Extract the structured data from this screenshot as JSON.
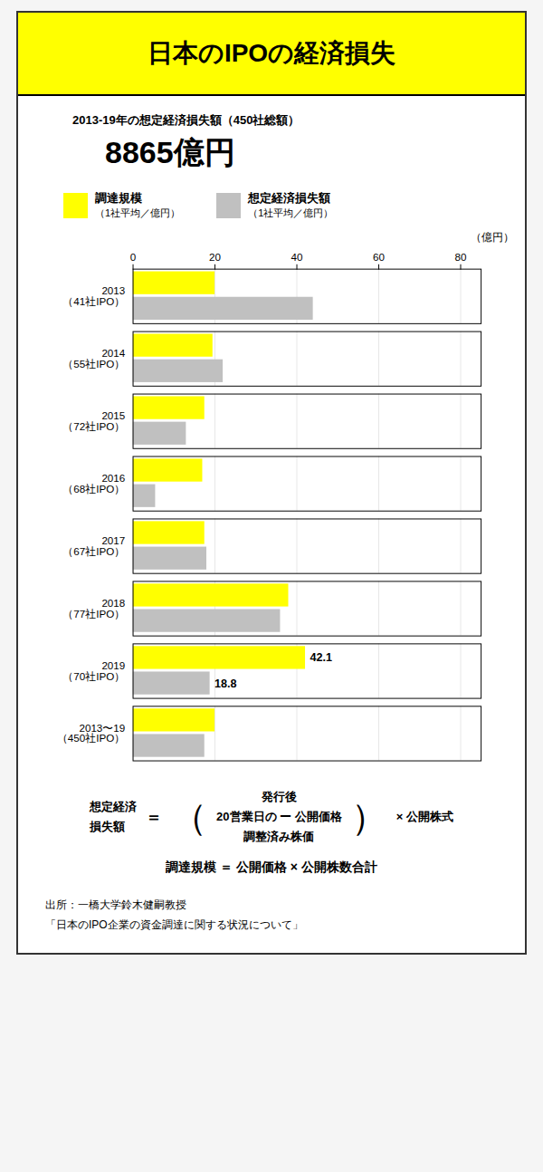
{
  "chart_data": {
    "type": "bar",
    "orientation": "horizontal",
    "title": "日本のIPOの経済損失",
    "subtitle": "2013-19年の想定経済損失額（450社総額）",
    "headline": "8865億円",
    "categories": [
      "2013\n（41社IPO）",
      "2014\n（55社IPO）",
      "2015\n（72社IPO）",
      "2016\n（68社IPO）",
      "2017\n（67社IPO）",
      "2018\n（77社IPO）",
      "2019\n（70社IPO）",
      "2013〜19\n（450社IPO）"
    ],
    "series": [
      {
        "name": "調達規模",
        "legend_note": "（1社平均／億円）",
        "color": "#ffff00",
        "values": [
          20.0,
          19.5,
          17.5,
          17.0,
          17.5,
          38.0,
          42.1,
          20.0
        ],
        "value_labels": [
          null,
          null,
          null,
          null,
          null,
          null,
          "42.1",
          null
        ]
      },
      {
        "name": "想定経済損失額",
        "legend_note": "（1社平均／億円）",
        "color": "#c0c0c0",
        "values": [
          44.0,
          22.0,
          13.0,
          5.5,
          18.0,
          36.0,
          18.8,
          17.5
        ],
        "value_labels": [
          null,
          null,
          null,
          null,
          null,
          null,
          "18.8",
          null
        ]
      }
    ],
    "x_label": "（億円）",
    "xlim": [
      0,
      85
    ],
    "xticks": [
      0,
      20,
      40,
      60,
      80
    ],
    "grid": true,
    "legend": "top",
    "formula": {
      "lhs": [
        "想定経済",
        "損失額"
      ],
      "eq": "＝",
      "open": "（",
      "frac": [
        "発行後",
        "20営業日の  ー 公開価格",
        "調整済み株価"
      ],
      "close": "）",
      "mult": "× 公開株式"
    },
    "formula2": "調達規模 ＝ 公開価格 × 公開株数合計",
    "source": [
      "出所：一橋大学鈴木健嗣教授",
      "「日本のIPO企業の資金調達に関する状況について」"
    ]
  }
}
